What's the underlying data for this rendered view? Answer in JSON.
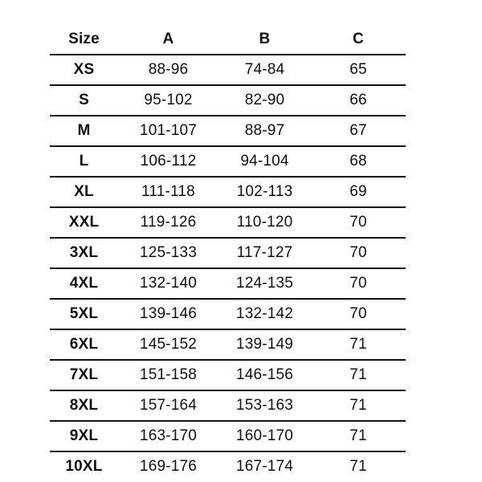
{
  "chart_data": {
    "type": "table",
    "columns": [
      "Size",
      "A",
      "B",
      "C"
    ],
    "rows": [
      [
        "XS",
        "88-96",
        "74-84",
        "65"
      ],
      [
        "S",
        "95-102",
        "82-90",
        "66"
      ],
      [
        "M",
        "101-107",
        "88-97",
        "67"
      ],
      [
        "L",
        "106-112",
        "94-104",
        "68"
      ],
      [
        "XL",
        "111-118",
        "102-113",
        "69"
      ],
      [
        "XXL",
        "119-126",
        "110-120",
        "70"
      ],
      [
        "3XL",
        "125-133",
        "117-127",
        "70"
      ],
      [
        "4XL",
        "132-140",
        "124-135",
        "70"
      ],
      [
        "5XL",
        "139-146",
        "132-142",
        "70"
      ],
      [
        "6XL",
        "145-152",
        "139-149",
        "71"
      ],
      [
        "7XL",
        "151-158",
        "146-156",
        "71"
      ],
      [
        "8XL",
        "157-164",
        "153-163",
        "71"
      ],
      [
        "9XL",
        "163-170",
        "160-170",
        "71"
      ],
      [
        "10XL",
        "169-176",
        "167-174",
        "71"
      ]
    ],
    "layout": {
      "grid": "horizontal-rules-between-rows",
      "legend": "none"
    }
  },
  "colors": {
    "text": "#111111",
    "rule": "#111111",
    "background": "#ffffff"
  }
}
